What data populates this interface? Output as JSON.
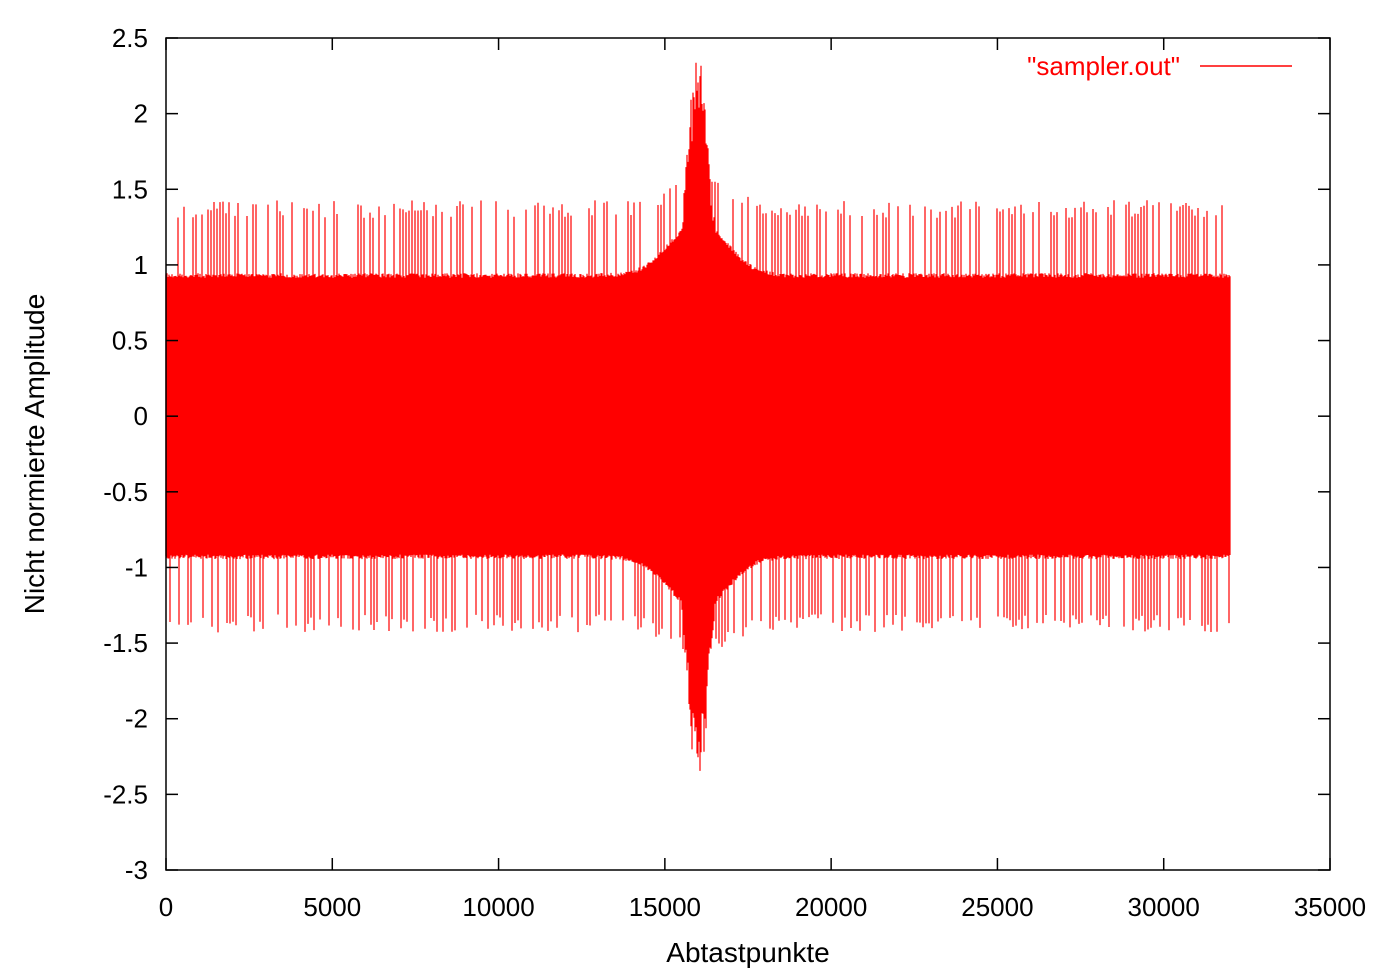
{
  "chart_data": {
    "type": "line",
    "title": "",
    "xlabel": "Abtastpunkte",
    "ylabel": "Nicht normierte Amplitude",
    "xlim": [
      0,
      35000
    ],
    "ylim": [
      -3,
      2.5
    ],
    "x_ticks": [
      0,
      5000,
      10000,
      15000,
      20000,
      25000,
      30000,
      35000
    ],
    "y_ticks": [
      2.5,
      2,
      1.5,
      1,
      0.5,
      0,
      -0.5,
      -1,
      -1.5,
      -2,
      -2.5,
      -3
    ],
    "x_tick_labels": [
      "0",
      "5000",
      "10000",
      "15000",
      "20000",
      "25000",
      "30000",
      "35000"
    ],
    "y_tick_labels": [
      "2.5",
      "2",
      "1.5",
      "1",
      "0.5",
      "0",
      "-0.5",
      "-1",
      "-1.5",
      "-2",
      "-2.5",
      "-3"
    ],
    "grid": false,
    "legend_position": "top-right",
    "series": [
      {
        "name": "\"sampler.out\"",
        "color": "#ff0000",
        "sample_count": 32000,
        "x_range": [
          0,
          32000
        ],
        "typical_band": [
          -0.93,
          0.93
        ],
        "spike_band": [
          -1.43,
          1.43
        ],
        "burst_center_x": 16000,
        "max_value": 2.45,
        "min_value": -2.5
      }
    ]
  }
}
